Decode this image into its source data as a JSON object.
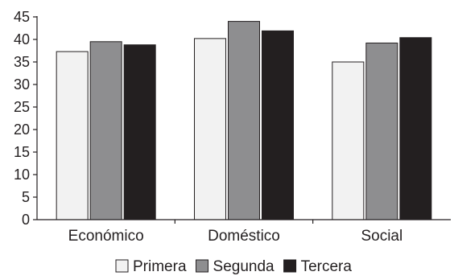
{
  "chart_data": {
    "type": "bar",
    "title": "",
    "xlabel": "",
    "ylabel": "",
    "ylim": [
      0,
      45
    ],
    "yticks": [
      0,
      5,
      10,
      15,
      20,
      25,
      30,
      35,
      40,
      45
    ],
    "grid": false,
    "legend_position": "bottom",
    "categories": [
      "Económico",
      "Doméstico",
      "Social"
    ],
    "series": [
      {
        "name": "Primera",
        "values": [
          37.3,
          40.2,
          35.0
        ],
        "color": "#f2f2f2"
      },
      {
        "name": "Segunda",
        "values": [
          39.5,
          44.0,
          39.2
        ],
        "color": "#8e8e90"
      },
      {
        "name": "Tercera",
        "values": [
          38.8,
          41.9,
          40.4
        ],
        "color": "#231f20"
      }
    ]
  }
}
